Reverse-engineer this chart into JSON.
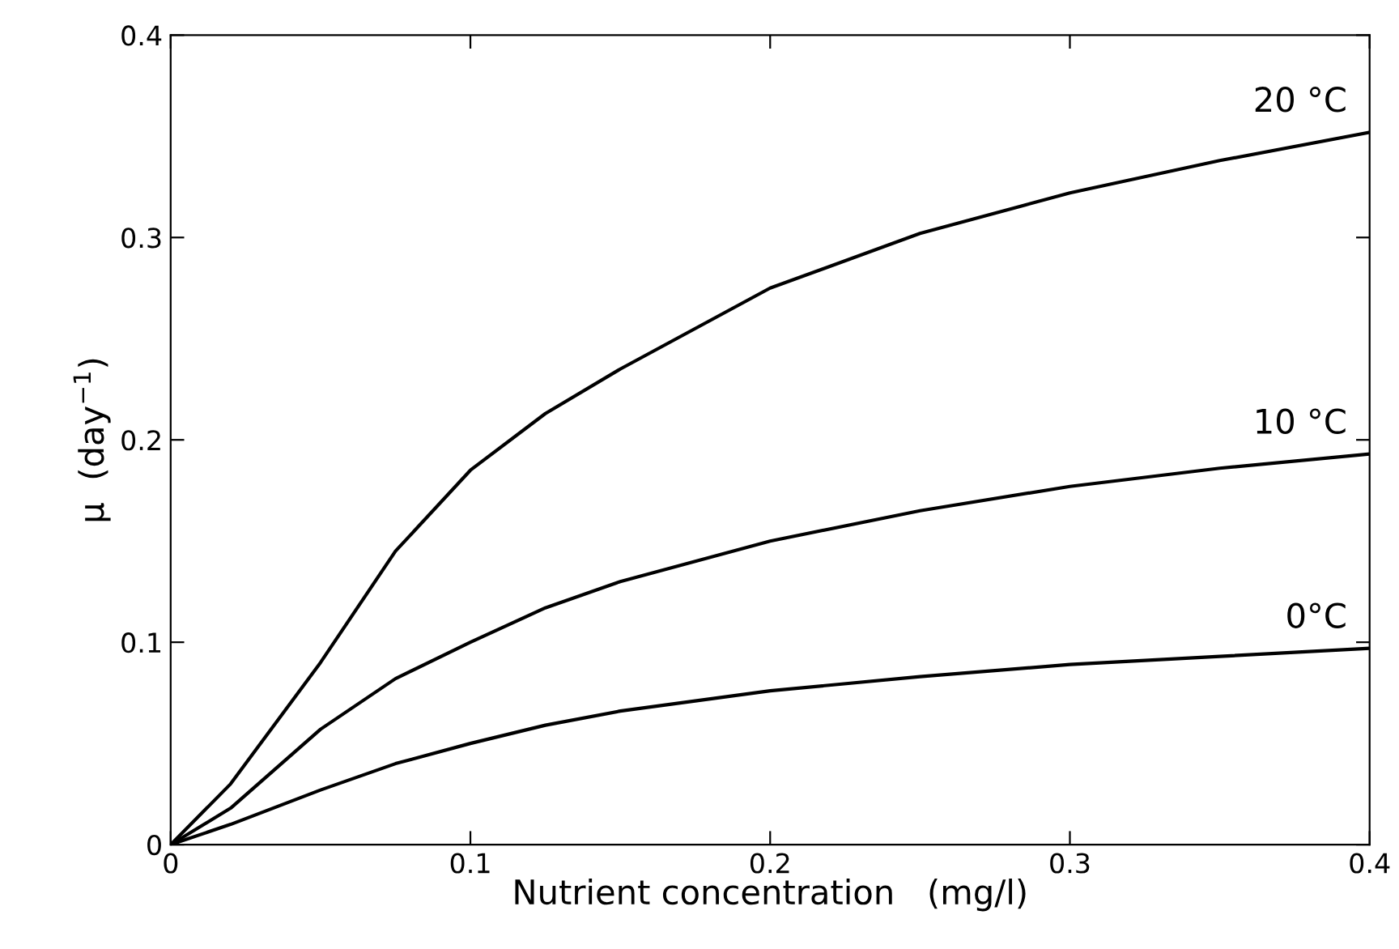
{
  "chart_data": {
    "type": "line",
    "xlabel": "Nutrient concentration   (mg/l)",
    "ylabel": "μ  (day$^{−1}$)",
    "x": [
      0,
      0.02,
      0.05,
      0.075,
      0.1,
      0.125,
      0.15,
      0.2,
      0.25,
      0.3,
      0.35,
      0.4
    ],
    "series": [
      {
        "name": "20 °C",
        "color": "#000000",
        "values": [
          0,
          0.03,
          0.09,
          0.145,
          0.185,
          0.213,
          0.235,
          0.275,
          0.302,
          0.322,
          0.338,
          0.352
        ]
      },
      {
        "name": "10 °C",
        "color": "#000000",
        "values": [
          0,
          0.018,
          0.057,
          0.082,
          0.1,
          0.117,
          0.13,
          0.15,
          0.165,
          0.177,
          0.186,
          0.193
        ]
      },
      {
        "name": "0°C",
        "color": "#000000",
        "values": [
          0,
          0.01,
          0.027,
          0.04,
          0.05,
          0.059,
          0.066,
          0.076,
          0.083,
          0.089,
          0.093,
          0.097
        ]
      }
    ],
    "xlim": [
      0,
      0.4
    ],
    "ylim": [
      0,
      0.4
    ],
    "xticks": [
      0,
      0.1,
      0.2,
      0.3,
      0.4
    ],
    "yticks": [
      0,
      0.1,
      0.2,
      0.3,
      0.4
    ],
    "grid": false,
    "marker": "none",
    "line_style": "solid"
  }
}
